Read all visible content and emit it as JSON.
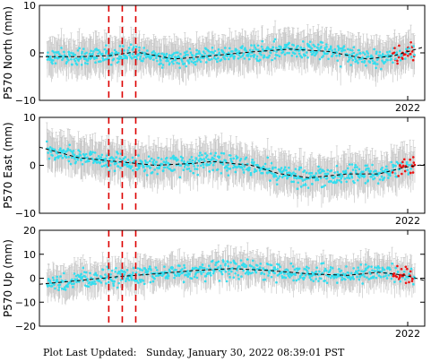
{
  "colors": {
    "obs_point": "#33ddee",
    "rapid_point": "#ee1111",
    "error_bar": "#c8c8c8",
    "trend_line": "#000000",
    "event_line": "#dd0000",
    "frame": "#000000"
  },
  "event_markers_fraction": [
    0.18,
    0.215,
    0.25
  ],
  "footer": {
    "label": "Plot Last Updated:",
    "timestamp": "Sunday, January 30, 2022 08:39:01 PST"
  },
  "chart_data": [
    {
      "type": "scatter",
      "ylabel": "P570 North (mm)",
      "ylim": [
        -10,
        10
      ],
      "yticks": [
        "10",
        "0",
        "−10"
      ],
      "xtick_label": "2022",
      "xlim_fraction": [
        0,
        1
      ],
      "grid": false,
      "points_mm_approx": {
        "count": 700,
        "spread_mm": 1.7,
        "error_bar_mm": 3.5
      },
      "trend_mm": [
        [
          0.0,
          -0.8
        ],
        [
          0.1,
          -0.8
        ],
        [
          0.18,
          -0.6
        ],
        [
          0.25,
          0.2
        ],
        [
          0.35,
          -1.3
        ],
        [
          0.45,
          -0.6
        ],
        [
          0.55,
          0.2
        ],
        [
          0.65,
          0.8
        ],
        [
          0.75,
          0.3
        ],
        [
          0.85,
          -1.3
        ],
        [
          0.92,
          -0.6
        ],
        [
          1.0,
          1.3
        ]
      ]
    },
    {
      "type": "scatter",
      "ylabel": "P570 East (mm)",
      "ylim": [
        -10,
        10
      ],
      "yticks": [
        "10",
        "0",
        "−10"
      ],
      "xtick_label": "2022",
      "xlim_fraction": [
        0,
        1
      ],
      "grid": false,
      "points_mm_approx": {
        "count": 700,
        "spread_mm": 1.8,
        "error_bar_mm": 3.6
      },
      "trend_mm": [
        [
          0.0,
          3.8
        ],
        [
          0.1,
          1.6
        ],
        [
          0.2,
          0.8
        ],
        [
          0.3,
          0.0
        ],
        [
          0.4,
          0.4
        ],
        [
          0.45,
          0.8
        ],
        [
          0.55,
          0.0
        ],
        [
          0.62,
          -1.7
        ],
        [
          0.7,
          -2.6
        ],
        [
          0.8,
          -1.8
        ],
        [
          0.88,
          -1.8
        ],
        [
          0.95,
          -0.4
        ],
        [
          1.0,
          0.2
        ]
      ]
    },
    {
      "type": "scatter",
      "ylabel": "P570 Up (mm)",
      "ylim": [
        -20,
        20
      ],
      "yticks": [
        "20",
        "10",
        "0",
        "−10",
        "−20"
      ],
      "xtick_label": "2022",
      "xlim_fraction": [
        0,
        1
      ],
      "grid": false,
      "points_mm_approx": {
        "count": 650,
        "spread_mm": 3.5,
        "error_bar_mm": 6.0
      },
      "trend_mm": [
        [
          0.0,
          -2.5
        ],
        [
          0.1,
          -1.0
        ],
        [
          0.2,
          0.6
        ],
        [
          0.3,
          1.8
        ],
        [
          0.4,
          3.2
        ],
        [
          0.5,
          4.0
        ],
        [
          0.6,
          3.2
        ],
        [
          0.7,
          1.8
        ],
        [
          0.8,
          1.2
        ],
        [
          0.88,
          2.5
        ],
        [
          0.95,
          1.2
        ],
        [
          1.0,
          -1.0
        ]
      ]
    }
  ]
}
